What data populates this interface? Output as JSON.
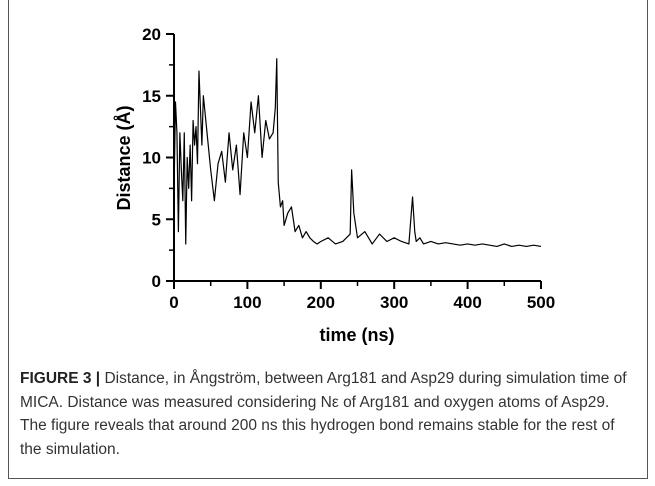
{
  "chart_data": {
    "type": "line",
    "title": "",
    "xlabel": "time (ns)",
    "ylabel": "Distance (Å)",
    "xlim": [
      0,
      500
    ],
    "ylim": [
      0,
      20
    ],
    "x_ticks": [
      "0",
      "100",
      "200",
      "300",
      "400",
      "500"
    ],
    "y_ticks": [
      "0",
      "5",
      "10",
      "15",
      "20"
    ],
    "grid": false,
    "legend": "none",
    "line_color": "#000000",
    "series": [
      {
        "x": [
          0,
          2,
          4,
          6,
          8,
          10,
          12,
          14,
          16,
          18,
          20,
          22,
          24,
          26,
          28,
          30,
          32,
          34,
          36,
          38,
          40,
          45,
          50,
          55,
          60,
          65,
          70,
          75,
          80,
          85,
          90,
          95,
          100,
          105,
          110,
          115,
          120,
          125,
          130,
          135,
          138,
          140,
          142,
          145,
          148,
          150,
          155,
          160,
          165,
          170,
          175,
          180,
          185,
          190,
          195,
          200,
          210,
          220,
          230,
          240,
          242,
          245,
          250,
          260,
          270,
          280,
          290,
          300,
          310,
          320,
          325,
          328,
          330,
          335,
          340,
          350,
          360,
          370,
          380,
          390,
          400,
          410,
          420,
          430,
          440,
          450,
          460,
          470,
          480,
          490,
          500
        ],
        "values": [
          7,
          14.5,
          12,
          4,
          12,
          9,
          6.5,
          12,
          3,
          10,
          7.5,
          11,
          6.5,
          13,
          11,
          12.5,
          9.5,
          17,
          14,
          11,
          15,
          12,
          9,
          6.5,
          9.5,
          10.5,
          8,
          12,
          9,
          11,
          7,
          12,
          10,
          14.5,
          12,
          15,
          10,
          13,
          11.5,
          12,
          14,
          18,
          8,
          6,
          6.5,
          4.5,
          5.5,
          6,
          4,
          4.5,
          3.5,
          4,
          3.5,
          3.2,
          3,
          3.2,
          3.5,
          3,
          3.2,
          3.8,
          9,
          5.5,
          3.5,
          4,
          3,
          3.8,
          3.2,
          3.5,
          3.2,
          3,
          6.8,
          4,
          3.2,
          3.5,
          3,
          3.2,
          3,
          3.1,
          3,
          2.9,
          3,
          2.9,
          3,
          2.9,
          2.8,
          3,
          2.8,
          2.9,
          2.8,
          2.9,
          2.8
        ]
      }
    ]
  },
  "caption": {
    "label": "FIGURE 3 |",
    "text": "Distance, in Ångström, between Arg181 and Asp29 during simulation time of MICA. Distance was measured considering Nε of Arg181 and oxygen atoms of Asp29. The figure reveals that around 200 ns this hydrogen bond remains stable for the rest of the simulation."
  }
}
